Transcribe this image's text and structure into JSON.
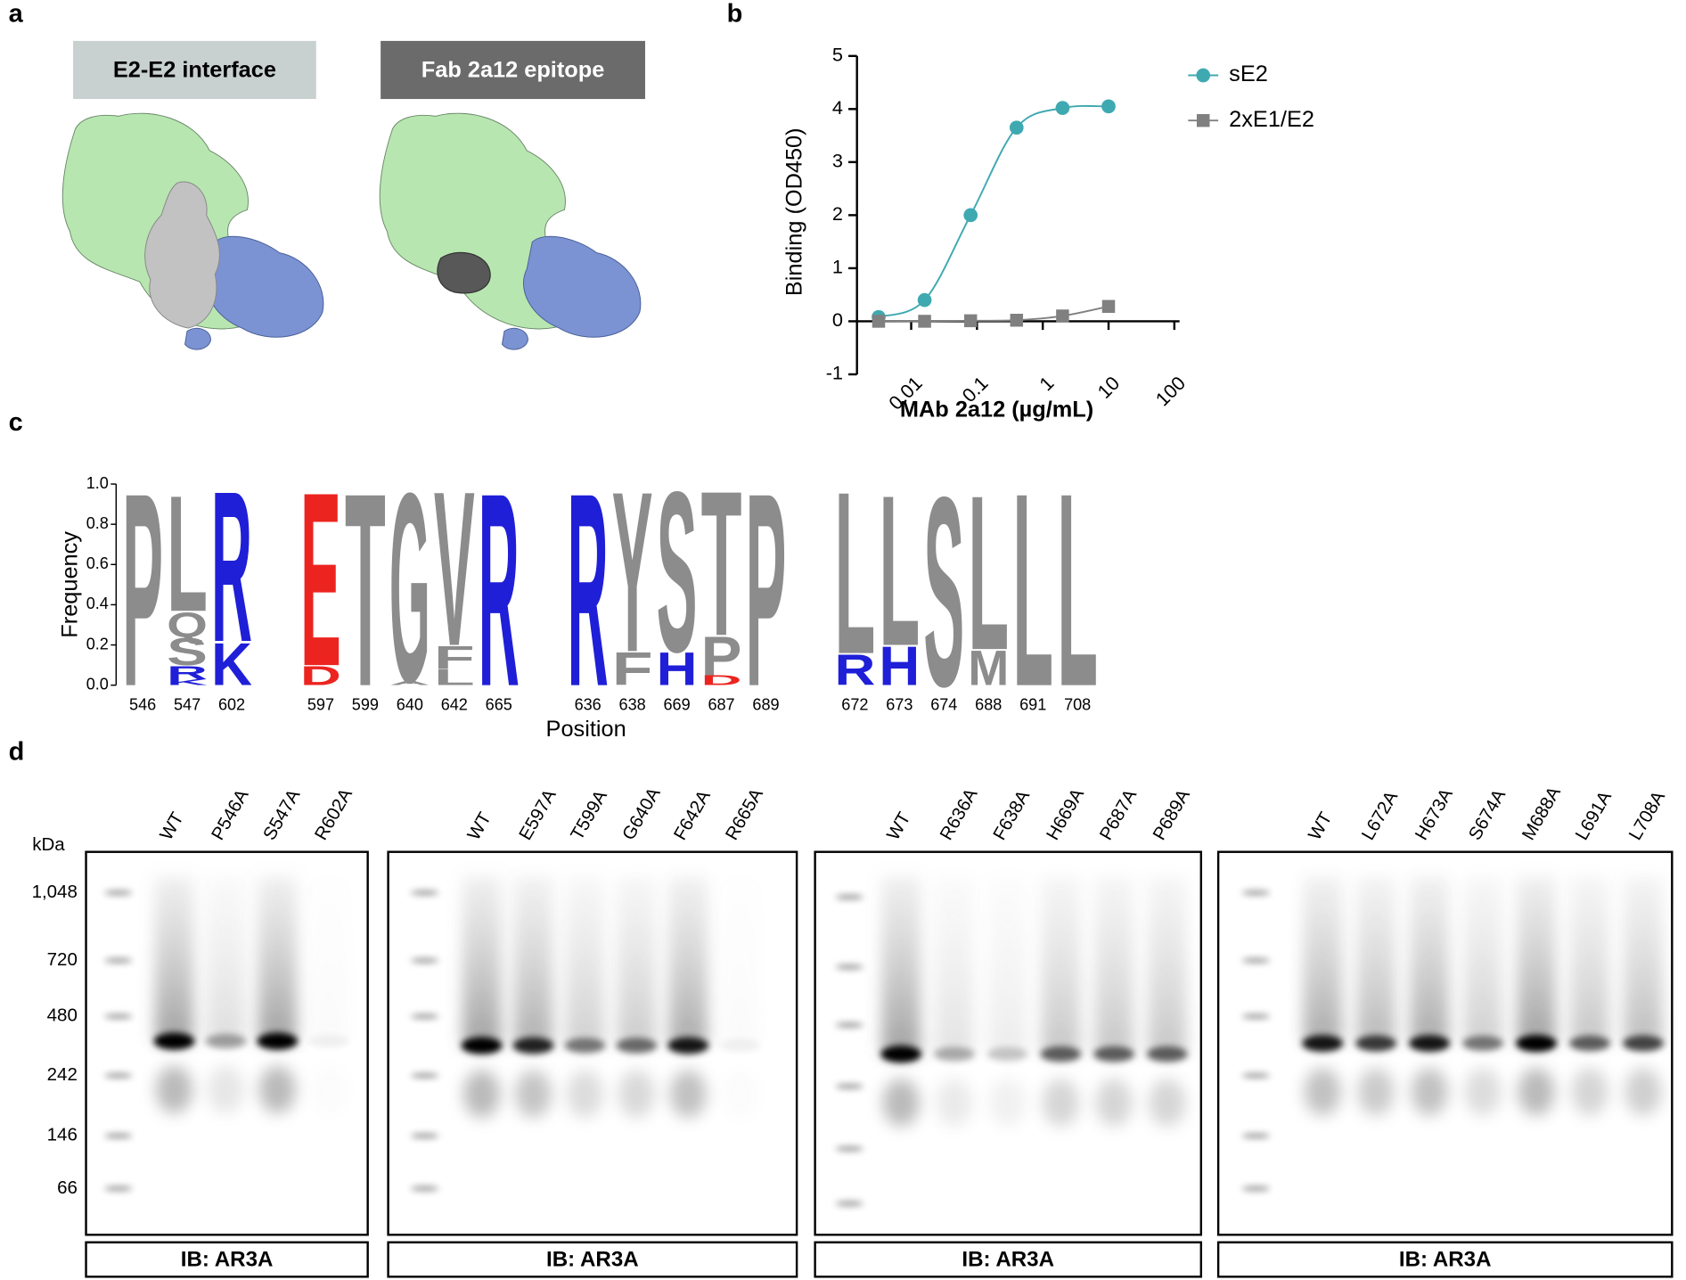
{
  "panel_labels": [
    "a",
    "b",
    "c",
    "d"
  ],
  "panel_a": {
    "titles": [
      "E2-E2 interface",
      "Fab 2a12 epitope"
    ]
  },
  "chart_data": [
    {
      "type": "line",
      "x_label": "MAb 2a12 (µg/mL)",
      "y_label": "Binding (OD450)",
      "x": [
        0.0032,
        0.016,
        0.08,
        0.4,
        2,
        10
      ],
      "x_scale": "log",
      "xlim": [
        0.0015,
        120
      ],
      "xticks": [
        0.01,
        0.1,
        1,
        10,
        100
      ],
      "ylim": [
        -1,
        5
      ],
      "yticks": [
        -1,
        0,
        1,
        2,
        3,
        4,
        5
      ],
      "legend": "upper right",
      "series": [
        {
          "name": "sE2",
          "color": "#3fa9b1",
          "marker": "circle",
          "values": [
            0.08,
            0.4,
            2.0,
            3.65,
            4.02,
            4.05
          ]
        },
        {
          "name": "2xE1/E2",
          "color": "#808080",
          "marker": "square",
          "values": [
            0.0,
            0.0,
            0.01,
            0.02,
            0.1,
            0.28
          ]
        }
      ]
    },
    {
      "type": "logo",
      "x_label": "Position",
      "y_label": "Frequency",
      "ylim": [
        0,
        1
      ],
      "yticks": [
        {
          "value": 0,
          "label": "0.0"
        },
        0.2,
        0.4,
        0.6,
        0.8,
        {
          "value": 1,
          "label": "1.0"
        }
      ],
      "groups": [
        [
          {
            "position": "546",
            "letters": [
              {
                "letter": "P",
                "value": 1.0,
                "color": "#8c8c8c"
              }
            ]
          },
          {
            "position": "547",
            "letters": [
              {
                "letter": "K",
                "value": 0.03,
                "color": "#1f1fd8"
              },
              {
                "letter": "R",
                "value": 0.07,
                "color": "#1f1fd8"
              },
              {
                "letter": "S",
                "value": 0.14,
                "color": "#8c8c8c"
              },
              {
                "letter": "Q",
                "value": 0.13,
                "color": "#8c8c8c"
              },
              {
                "letter": "L",
                "value": 0.6,
                "color": "#8c8c8c"
              }
            ]
          },
          {
            "position": "602",
            "letters": [
              {
                "letter": "K",
                "value": 0.22,
                "color": "#1f1fd8"
              },
              {
                "letter": "R",
                "value": 0.78,
                "color": "#1f1fd8"
              }
            ]
          }
        ],
        [
          {
            "position": "597",
            "letters": [
              {
                "letter": "D",
                "value": 0.1,
                "color": "#ec2420"
              },
              {
                "letter": "E",
                "value": 0.9,
                "color": "#ec2420"
              }
            ]
          },
          {
            "position": "599",
            "letters": [
              {
                "letter": "T",
                "value": 1.0,
                "color": "#8c8c8c"
              }
            ]
          },
          {
            "position": "640",
            "letters": [
              {
                "letter": "A",
                "value": 0.02,
                "color": "#8c8c8c"
              },
              {
                "letter": "G",
                "value": 0.98,
                "color": "#8c8c8c"
              }
            ]
          },
          {
            "position": "642",
            "letters": [
              {
                "letter": "L",
                "value": 0.08,
                "color": "#8c8c8c"
              },
              {
                "letter": "F",
                "value": 0.12,
                "color": "#8c8c8c"
              },
              {
                "letter": "V",
                "value": 0.8,
                "color": "#8c8c8c"
              }
            ]
          },
          {
            "position": "665",
            "letters": [
              {
                "letter": "R",
                "value": 1.0,
                "color": "#1f1fd8"
              }
            ]
          }
        ],
        [
          {
            "position": "636",
            "letters": [
              {
                "letter": "R",
                "value": 1.0,
                "color": "#1f1fd8"
              }
            ]
          },
          {
            "position": "638",
            "letters": [
              {
                "letter": "F",
                "value": 0.17,
                "color": "#8c8c8c"
              },
              {
                "letter": "Y",
                "value": 0.83,
                "color": "#8c8c8c"
              }
            ]
          },
          {
            "position": "669",
            "letters": [
              {
                "letter": "H",
                "value": 0.17,
                "color": "#1f1fd8"
              },
              {
                "letter": "S",
                "value": 0.83,
                "color": "#8c8c8c"
              }
            ]
          },
          {
            "position": "687",
            "letters": [
              {
                "letter": "D",
                "value": 0.05,
                "color": "#ec2420"
              },
              {
                "letter": "P",
                "value": 0.2,
                "color": "#8c8c8c"
              },
              {
                "letter": "T",
                "value": 0.75,
                "color": "#8c8c8c"
              }
            ]
          },
          {
            "position": "689",
            "letters": [
              {
                "letter": "P",
                "value": 1.0,
                "color": "#8c8c8c"
              }
            ]
          }
        ],
        [
          {
            "position": "672",
            "letters": [
              {
                "letter": "R",
                "value": 0.16,
                "color": "#1f1fd8"
              },
              {
                "letter": "L",
                "value": 0.84,
                "color": "#8c8c8c"
              }
            ]
          },
          {
            "position": "673",
            "letters": [
              {
                "letter": "H",
                "value": 0.2,
                "color": "#1f1fd8"
              },
              {
                "letter": "L",
                "value": 0.78,
                "color": "#8c8c8c"
              }
            ]
          },
          {
            "position": "674",
            "letters": [
              {
                "letter": "S",
                "value": 0.98,
                "color": "#8c8c8c"
              }
            ]
          },
          {
            "position": "688",
            "letters": [
              {
                "letter": "M",
                "value": 0.18,
                "color": "#8c8c8c"
              },
              {
                "letter": "L",
                "value": 0.8,
                "color": "#8c8c8c"
              }
            ]
          },
          {
            "position": "691",
            "letters": [
              {
                "letter": "L",
                "value": 1.0,
                "color": "#8c8c8c"
              }
            ]
          },
          {
            "position": "708",
            "letters": [
              {
                "letter": "L",
                "value": 1.0,
                "color": "#8c8c8c"
              }
            ]
          }
        ]
      ]
    }
  ],
  "blots": {
    "unit": "kDa",
    "markers": [
      "1,048",
      "720",
      "480",
      "242",
      "146",
      "66"
    ],
    "panels": [
      {
        "lanes": [
          "WT",
          "P546A",
          "S547A",
          "R602A"
        ],
        "antibody": "IB: AR3A"
      },
      {
        "lanes": [
          "WT",
          "E597A",
          "T599A",
          "G640A",
          "F642A",
          "R665A"
        ],
        "antibody": "IB: AR3A"
      },
      {
        "lanes": [
          "WT",
          "R636A",
          "F638A",
          "H669A",
          "P687A",
          "P689A"
        ],
        "antibody": "IB: AR3A"
      },
      {
        "lanes": [
          "WT",
          "L672A",
          "H673A",
          "S674A",
          "M688A",
          "L691A",
          "L708A"
        ],
        "antibody": "IB: AR3A"
      }
    ]
  }
}
